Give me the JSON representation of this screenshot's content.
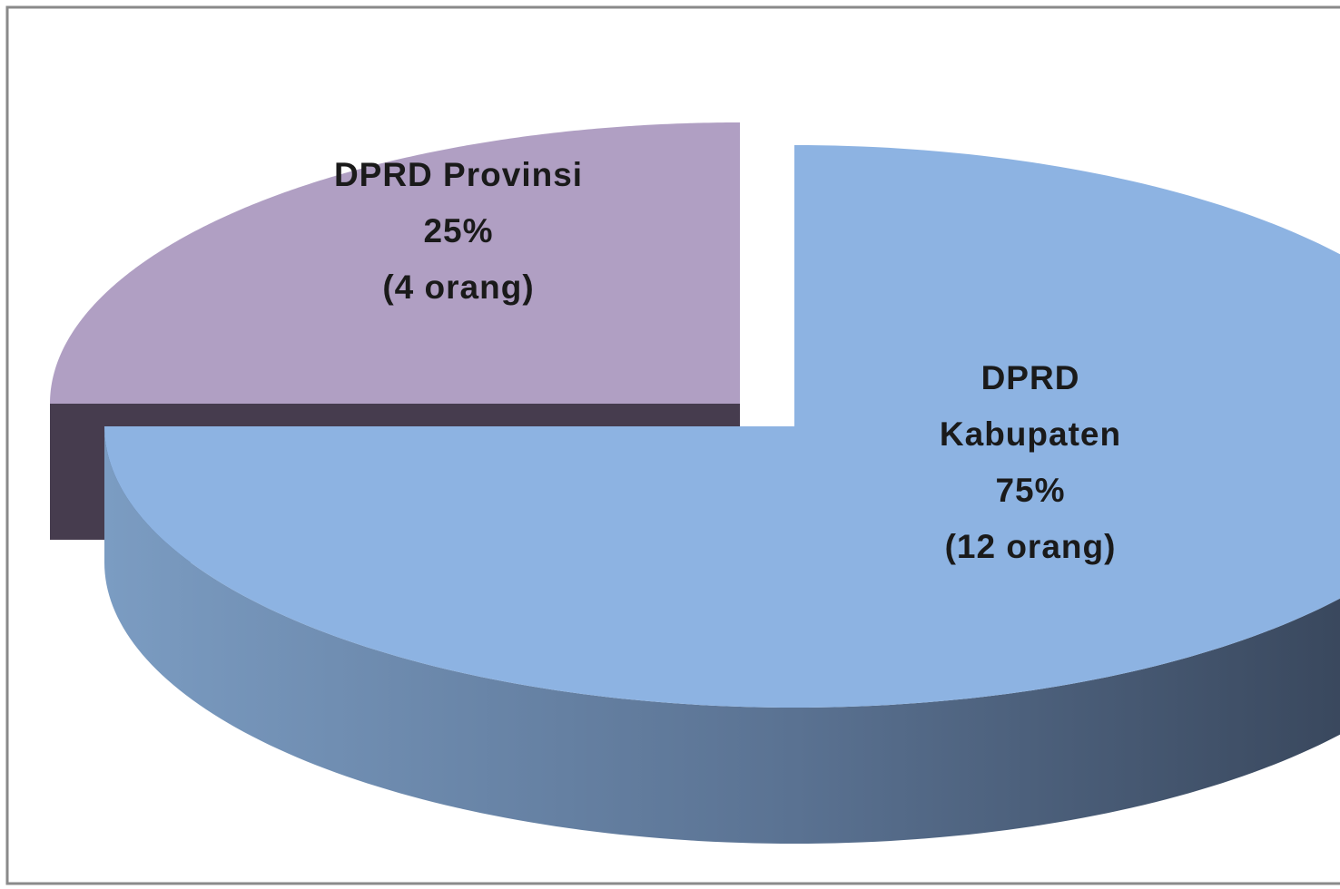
{
  "chart_data": {
    "type": "pie",
    "categories": [
      "DPRD Provinsi",
      "DPRD Kabupaten"
    ],
    "values": [
      25,
      75
    ],
    "value_labels": [
      "25%",
      "75%"
    ],
    "count_labels": [
      "(4 orang)",
      "(12 orang)"
    ],
    "colors": [
      "#b09fc3",
      "#8db3e2"
    ],
    "legend": false
  }
}
